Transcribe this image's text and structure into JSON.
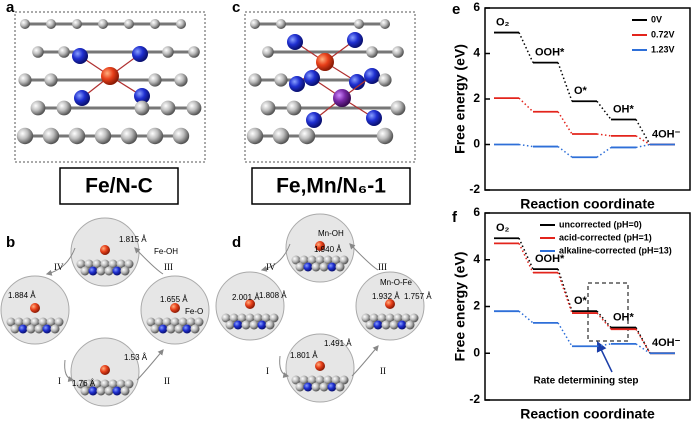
{
  "figure_labels": [
    "a",
    "b",
    "c",
    "d",
    "e",
    "f"
  ],
  "structures": [
    {
      "caption": "Fe/N-C"
    },
    {
      "caption": "Fe,Mn/N₆-1"
    }
  ],
  "cycles": [
    {
      "steps": [
        "I",
        "II",
        "III",
        "IV"
      ],
      "annotations": [
        "1.815 Å",
        "Fe-OH",
        "1.884 Å",
        "1.655 Å",
        "Fe-O",
        "1.53 Å",
        "1.76 Å"
      ]
    },
    {
      "steps": [
        "I",
        "II",
        "III",
        "IV"
      ],
      "annotations": [
        "Mn-OH",
        "1.940 Å",
        "2.001 Å",
        "1.808 Å",
        "Mn-O-Fe",
        "1.932 Å",
        "1.757 Å",
        "1.491 Å",
        "1.801 Å"
      ]
    }
  ],
  "chart_data": [
    {
      "type": "energy-levels",
      "ylabel": "Free energy (eV)",
      "xlabel": "Reaction coordinate",
      "categories": [
        "O₂",
        "OOH*",
        "O*",
        "OH*",
        "4OH⁻"
      ],
      "series": [
        {
          "name": "0V",
          "color": "#000000",
          "values": [
            4.92,
            3.6,
            1.9,
            1.1,
            0
          ]
        },
        {
          "name": "0.72V",
          "color": "#e3241c",
          "values": [
            2.04,
            1.44,
            0.46,
            0.38,
            0
          ]
        },
        {
          "name": "1.23V",
          "color": "#2e6fd8",
          "values": [
            0,
            -0.09,
            -0.56,
            -0.13,
            0
          ]
        }
      ],
      "ylim": [
        -2,
        6
      ],
      "yticks": [
        -2,
        0,
        2,
        4,
        6
      ],
      "legend": "upper right"
    },
    {
      "type": "energy-levels",
      "ylabel": "Free energy (eV)",
      "xlabel": "Reaction coordinate",
      "categories": [
        "O₂",
        "OOH*",
        "O*",
        "OH*",
        "4OH⁻"
      ],
      "series": [
        {
          "name": "uncorrected (pH=0)",
          "color": "#000000",
          "values": [
            4.92,
            3.6,
            1.8,
            1.1,
            0
          ]
        },
        {
          "name": "acid-corrected (pH=1)",
          "color": "#e3241c",
          "values": [
            4.7,
            3.45,
            1.72,
            1.03,
            0
          ]
        },
        {
          "name": "alkaline-corrected (pH=13)",
          "color": "#2e6fd8",
          "values": [
            1.8,
            1.3,
            0.3,
            0.4,
            0
          ]
        }
      ],
      "ylim": [
        -2,
        6
      ],
      "yticks": [
        -2,
        0,
        2,
        4,
        6
      ],
      "legend": "upper left",
      "annotation": "Rate determining step"
    }
  ]
}
